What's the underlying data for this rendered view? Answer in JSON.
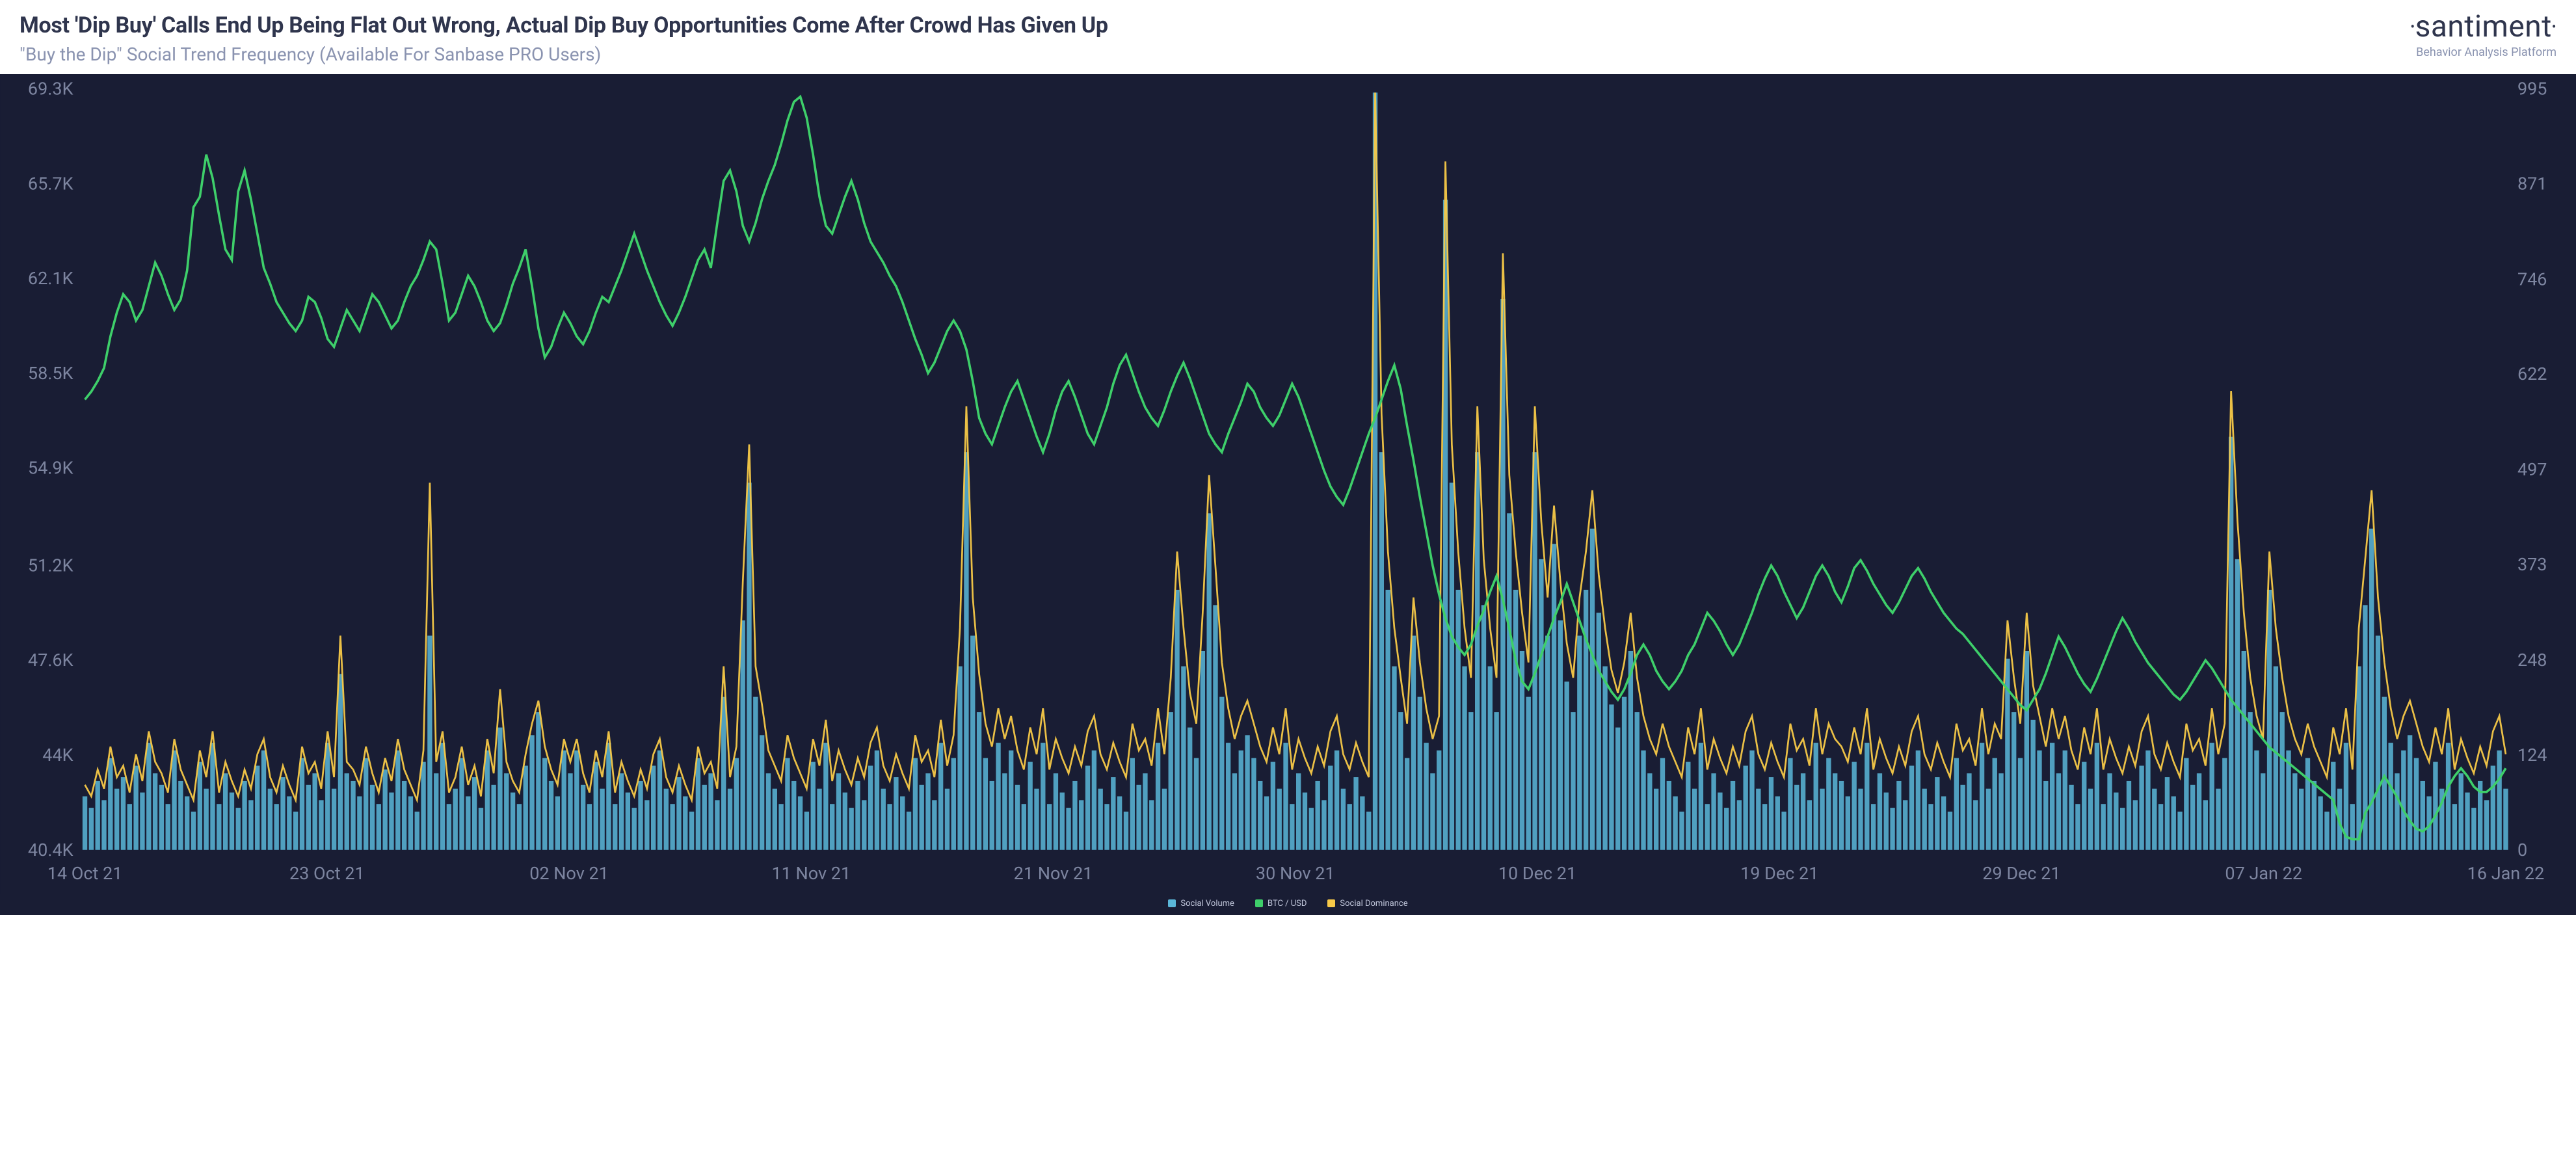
{
  "header": {
    "title": "Most 'Dip Buy' Calls End Up Being Flat Out Wrong, Actual Dip Buy Opportunities Come After Crowd Has Given Up",
    "subtitle": "\"Buy the Dip\" Social Trend Frequency (Available For Sanbase PRO Users)",
    "brand": "santiment",
    "tagline": "Behavior Analysis Platform"
  },
  "chart": {
    "type": "combo-bar-line",
    "background_color": "#191d34",
    "axis_label_color": "#7d85a0",
    "axis_font_size": 12,
    "left_axis": {
      "label": "BTC / USD",
      "min": 40400,
      "max": 69300,
      "ticks": [
        40400,
        44000,
        47600,
        51200,
        54900,
        58500,
        62100,
        65700,
        69300
      ],
      "tick_labels": [
        "40.4K",
        "44K",
        "47.6K",
        "51.2K",
        "54.9K",
        "58.5K",
        "62.1K",
        "65.7K",
        "69.3K"
      ]
    },
    "right_axis": {
      "label": "Social",
      "min": 0,
      "max": 995,
      "ticks": [
        0,
        124,
        248,
        373,
        497,
        622,
        746,
        871,
        995
      ],
      "tick_labels": [
        "0",
        "124",
        "248",
        "373",
        "497",
        "622",
        "746",
        "871",
        "995"
      ]
    },
    "x_axis": {
      "labels": [
        "14 Oct 21",
        "23 Oct 21",
        "02 Nov 21",
        "11 Nov 21",
        "21 Nov 21",
        "30 Nov 21",
        "10 Dec 21",
        "19 Dec 21",
        "29 Dec 21",
        "07 Jan 22",
        "16 Jan 22"
      ]
    },
    "colors": {
      "social_volume": "#5bb7d9",
      "btc_usd": "#3ecf6a",
      "social_dominance": "#f7c948"
    },
    "legend": [
      {
        "label": "Social Volume",
        "color": "#5bb7d9"
      },
      {
        "label": "BTC / USD",
        "color": "#3ecf6a"
      },
      {
        "label": "Social Dominance",
        "color": "#f7c948"
      }
    ],
    "n_points": 380,
    "btc_usd": [
      57500,
      57800,
      58200,
      58700,
      59900,
      60800,
      61500,
      61200,
      60500,
      60900,
      61800,
      62700,
      62200,
      61500,
      60900,
      61300,
      62400,
      64800,
      65200,
      66800,
      65900,
      64500,
      63200,
      62800,
      65400,
      66200,
      65100,
      63800,
      62500,
      61900,
      61200,
      60800,
      60400,
      60100,
      60500,
      61400,
      61200,
      60600,
      59800,
      59500,
      60200,
      60900,
      60500,
      60100,
      60800,
      61500,
      61200,
      60700,
      60200,
      60500,
      61200,
      61800,
      62200,
      62800,
      63500,
      63200,
      61900,
      60500,
      60800,
      61500,
      62200,
      61800,
      61200,
      60500,
      60100,
      60400,
      61100,
      61900,
      62500,
      63200,
      61800,
      60200,
      59100,
      59500,
      60200,
      60800,
      60400,
      59900,
      59600,
      60100,
      60800,
      61400,
      61200,
      61800,
      62400,
      63100,
      63800,
      63100,
      62400,
      61800,
      61200,
      60700,
      60300,
      60800,
      61400,
      62100,
      62800,
      63200,
      62500,
      64200,
      65800,
      66200,
      65400,
      64100,
      63500,
      64200,
      65100,
      65800,
      66400,
      67200,
      68100,
      68800,
      69000,
      68200,
      66800,
      65200,
      64100,
      63800,
      64500,
      65200,
      65800,
      65100,
      64200,
      63500,
      63100,
      62700,
      62200,
      61800,
      61200,
      60500,
      59800,
      59200,
      58500,
      58900,
      59500,
      60100,
      60500,
      60100,
      59400,
      58200,
      56800,
      56200,
      55800,
      56500,
      57200,
      57800,
      58200,
      57500,
      56800,
      56100,
      55500,
      56200,
      57100,
      57800,
      58200,
      57600,
      56900,
      56200,
      55800,
      56500,
      57200,
      58100,
      58800,
      59200,
      58500,
      57800,
      57200,
      56800,
      56500,
      57100,
      57800,
      58400,
      58900,
      58300,
      57600,
      56900,
      56200,
      55800,
      55500,
      56200,
      56800,
      57400,
      58100,
      57800,
      57200,
      56800,
      56500,
      56900,
      57500,
      58100,
      57600,
      56900,
      56200,
      55500,
      54800,
      54200,
      53800,
      53500,
      54100,
      54800,
      55500,
      56200,
      56800,
      57500,
      58200,
      58800,
      57900,
      56500,
      55200,
      53800,
      52500,
      51200,
      50100,
      49200,
      48500,
      48100,
      47800,
      48200,
      48900,
      49500,
      50200,
      50800,
      49900,
      48800,
      47600,
      46800,
      46500,
      47100,
      47800,
      48500,
      49200,
      49800,
      50500,
      49800,
      49100,
      48400,
      47800,
      47200,
      46800,
      46400,
      46100,
      46500,
      47100,
      47800,
      48200,
      47800,
      47200,
      46800,
      46500,
      46800,
      47200,
      47800,
      48200,
      48800,
      49400,
      49100,
      48700,
      48200,
      47800,
      48200,
      48800,
      49400,
      50100,
      50700,
      51200,
      50800,
      50200,
      49700,
      49200,
      49600,
      50200,
      50800,
      51200,
      50800,
      50200,
      49800,
      50400,
      51100,
      51400,
      51000,
      50500,
      50100,
      49700,
      49400,
      49800,
      50300,
      50800,
      51100,
      50700,
      50200,
      49800,
      49400,
      49100,
      48800,
      48600,
      48300,
      48000,
      47700,
      47400,
      47100,
      46800,
      46500,
      46200,
      45900,
      45700,
      46100,
      46500,
      47100,
      47800,
      48500,
      48100,
      47600,
      47100,
      46700,
      46400,
      46900,
      47500,
      48100,
      48700,
      49200,
      48800,
      48300,
      47900,
      47500,
      47200,
      46900,
      46600,
      46300,
      46100,
      46400,
      46800,
      47200,
      47600,
      47300,
      46900,
      46500,
      46100,
      45800,
      45500,
      45200,
      44900,
      44600,
      44300,
      44100,
      43900,
      43700,
      43500,
      43300,
      43100,
      42900,
      42700,
      42500,
      42300,
      41400,
      40900,
      40800,
      40800,
      41800,
      42200,
      42700,
      43200,
      42800,
      42400,
      41900,
      41500,
      41200,
      41100,
      41300,
      41700,
      42200,
      42800,
      43200,
      43500,
      43200,
      42800,
      42600,
      42600,
      42800,
      43100,
      43500
    ],
    "social_volume": [
      70,
      55,
      90,
      65,
      120,
      80,
      95,
      60,
      110,
      75,
      140,
      100,
      85,
      60,
      130,
      90,
      70,
      50,
      115,
      80,
      140,
      60,
      100,
      75,
      55,
      90,
      65,
      110,
      130,
      80,
      60,
      95,
      70,
      50,
      120,
      85,
      100,
      65,
      140,
      80,
      230,
      100,
      90,
      70,
      120,
      85,
      60,
      105,
      75,
      130,
      90,
      70,
      50,
      115,
      280,
      100,
      140,
      60,
      80,
      120,
      70,
      95,
      55,
      130,
      85,
      160,
      100,
      75,
      60,
      110,
      150,
      180,
      120,
      90,
      70,
      130,
      100,
      130,
      85,
      60,
      115,
      80,
      140,
      60,
      100,
      75,
      55,
      90,
      65,
      110,
      130,
      80,
      60,
      95,
      70,
      50,
      120,
      85,
      100,
      65,
      200,
      80,
      120,
      300,
      480,
      200,
      150,
      100,
      80,
      60,
      120,
      90,
      70,
      50,
      115,
      80,
      140,
      60,
      100,
      75,
      55,
      90,
      65,
      110,
      130,
      80,
      60,
      95,
      70,
      50,
      120,
      85,
      100,
      65,
      140,
      80,
      120,
      240,
      520,
      280,
      180,
      120,
      90,
      140,
      100,
      130,
      85,
      60,
      115,
      80,
      140,
      60,
      100,
      75,
      55,
      90,
      65,
      110,
      130,
      80,
      60,
      95,
      70,
      50,
      120,
      85,
      100,
      65,
      140,
      80,
      180,
      340,
      240,
      160,
      120,
      260,
      440,
      320,
      200,
      140,
      100,
      130,
      150,
      120,
      90,
      70,
      115,
      80,
      140,
      60,
      100,
      75,
      55,
      90,
      65,
      110,
      130,
      80,
      60,
      95,
      70,
      50,
      990,
      520,
      340,
      240,
      180,
      120,
      280,
      200,
      140,
      100,
      130,
      850,
      480,
      340,
      240,
      180,
      520,
      320,
      240,
      180,
      720,
      440,
      340,
      260,
      200,
      520,
      380,
      280,
      400,
      300,
      220,
      180,
      280,
      340,
      420,
      310,
      240,
      190,
      160,
      200,
      260,
      180,
      130,
      100,
      80,
      120,
      90,
      70,
      50,
      115,
      80,
      140,
      60,
      100,
      75,
      55,
      90,
      65,
      110,
      130,
      80,
      60,
      95,
      70,
      50,
      120,
      85,
      100,
      65,
      140,
      80,
      120,
      100,
      90,
      70,
      115,
      80,
      140,
      60,
      100,
      75,
      55,
      90,
      65,
      110,
      130,
      80,
      60,
      95,
      70,
      50,
      120,
      85,
      100,
      65,
      140,
      80,
      120,
      100,
      250,
      180,
      120,
      260,
      170,
      130,
      90,
      140,
      100,
      130,
      85,
      60,
      115,
      80,
      140,
      60,
      100,
      75,
      55,
      90,
      65,
      110,
      130,
      80,
      60,
      95,
      70,
      50,
      120,
      85,
      100,
      65,
      140,
      80,
      120,
      540,
      380,
      260,
      180,
      130,
      100,
      340,
      240,
      180,
      130,
      100,
      80,
      120,
      90,
      70,
      50,
      115,
      80,
      140,
      60,
      240,
      320,
      420,
      280,
      200,
      140,
      100,
      130,
      150,
      120,
      90,
      70,
      115,
      80,
      140,
      60,
      100,
      75,
      55,
      90,
      65,
      110,
      130,
      80
    ],
    "social_dominance": [
      85,
      70,
      105,
      80,
      135,
      95,
      110,
      75,
      125,
      90,
      155,
      115,
      100,
      75,
      145,
      105,
      85,
      65,
      130,
      95,
      155,
      75,
      115,
      90,
      70,
      105,
      80,
      125,
      145,
      95,
      75,
      110,
      85,
      65,
      135,
      100,
      115,
      80,
      155,
      95,
      280,
      115,
      105,
      85,
      135,
      100,
      75,
      120,
      90,
      145,
      105,
      85,
      65,
      130,
      480,
      115,
      155,
      75,
      95,
      135,
      85,
      110,
      70,
      145,
      100,
      210,
      115,
      90,
      75,
      125,
      165,
      195,
      135,
      105,
      85,
      145,
      115,
      145,
      100,
      75,
      130,
      95,
      155,
      75,
      115,
      90,
      70,
      105,
      80,
      125,
      145,
      95,
      75,
      110,
      85,
      65,
      135,
      100,
      115,
      80,
      240,
      95,
      135,
      350,
      530,
      240,
      190,
      130,
      110,
      90,
      150,
      120,
      100,
      80,
      145,
      110,
      170,
      90,
      130,
      105,
      85,
      120,
      95,
      140,
      160,
      110,
      90,
      125,
      100,
      80,
      150,
      115,
      130,
      95,
      170,
      110,
      150,
      290,
      580,
      330,
      230,
      165,
      135,
      185,
      145,
      175,
      130,
      105,
      160,
      125,
      185,
      105,
      145,
      120,
      100,
      135,
      110,
      155,
      175,
      125,
      105,
      140,
      115,
      95,
      165,
      130,
      145,
      110,
      185,
      125,
      225,
      390,
      290,
      205,
      165,
      310,
      490,
      370,
      245,
      185,
      145,
      175,
      195,
      165,
      135,
      115,
      160,
      125,
      185,
      105,
      145,
      120,
      100,
      135,
      110,
      155,
      175,
      125,
      105,
      140,
      115,
      95,
      990,
      570,
      390,
      290,
      225,
      165,
      330,
      245,
      185,
      145,
      175,
      900,
      530,
      390,
      290,
      225,
      580,
      380,
      290,
      225,
      780,
      490,
      390,
      310,
      245,
      580,
      430,
      330,
      450,
      350,
      270,
      225,
      330,
      390,
      470,
      360,
      290,
      235,
      205,
      245,
      310,
      225,
      175,
      145,
      125,
      165,
      135,
      115,
      95,
      160,
      125,
      185,
      105,
      145,
      120,
      100,
      135,
      110,
      155,
      175,
      125,
      105,
      140,
      115,
      95,
      165,
      130,
      145,
      110,
      185,
      125,
      165,
      145,
      135,
      115,
      160,
      125,
      185,
      105,
      145,
      120,
      100,
      135,
      110,
      155,
      175,
      125,
      105,
      140,
      115,
      95,
      165,
      130,
      145,
      110,
      185,
      125,
      165,
      145,
      300,
      225,
      165,
      310,
      215,
      175,
      135,
      185,
      145,
      175,
      130,
      105,
      160,
      125,
      185,
      105,
      145,
      120,
      100,
      135,
      110,
      155,
      175,
      125,
      105,
      140,
      115,
      95,
      165,
      130,
      145,
      110,
      185,
      125,
      165,
      600,
      430,
      310,
      225,
      175,
      145,
      390,
      290,
      225,
      175,
      145,
      125,
      165,
      135,
      115,
      95,
      160,
      125,
      185,
      105,
      290,
      380,
      470,
      330,
      245,
      185,
      145,
      175,
      195,
      165,
      135,
      115,
      160,
      125,
      185,
      105,
      145,
      120,
      100,
      135,
      110,
      155,
      175,
      125
    ]
  }
}
